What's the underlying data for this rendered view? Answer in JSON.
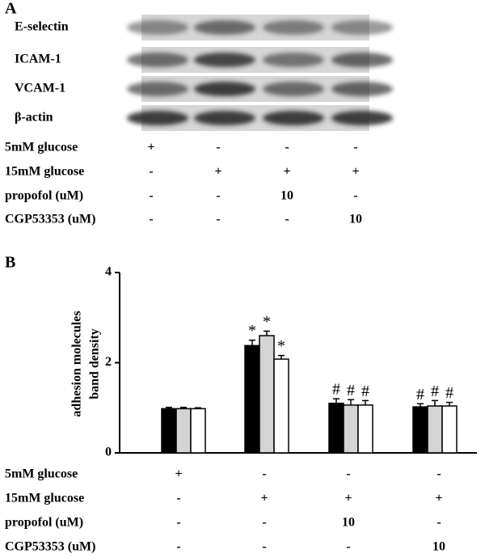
{
  "panel_a": {
    "label": "A",
    "bands": [
      "E-selectin",
      "ICAM-1",
      "VCAM-1",
      "β-actin"
    ],
    "conditions": [
      {
        "label": "5mM glucose",
        "values": [
          "+",
          "-",
          "-",
          "-"
        ]
      },
      {
        "label": "15mM glucose",
        "values": [
          "-",
          "+",
          "+",
          "+"
        ]
      },
      {
        "label": "propofol (uM)",
        "values": [
          "-",
          "-",
          "10",
          "-"
        ]
      },
      {
        "label": "CGP53353 (uM)",
        "values": [
          "-",
          "-",
          "-",
          "10"
        ]
      }
    ]
  },
  "chart_data": {
    "type": "bar",
    "panel_label": "B",
    "ylabel": [
      "adhesion molecules",
      "band density"
    ],
    "categories": [
      null,
      null,
      null,
      null
    ],
    "series": [
      {
        "color": "#000000",
        "values": [
          0.98,
          2.38,
          1.1,
          1.02
        ],
        "errors": [
          0.03,
          0.12,
          0.1,
          0.07
        ],
        "markers": [
          null,
          "*",
          "#",
          "#"
        ]
      },
      {
        "color": "#d4d4d4",
        "values": [
          0.98,
          2.6,
          1.06,
          1.04
        ],
        "errors": [
          0.03,
          0.1,
          0.12,
          0.12
        ],
        "markers": [
          null,
          "*",
          "#",
          "#"
        ]
      },
      {
        "color": "#ffffff",
        "values": [
          0.98,
          2.08,
          1.06,
          1.04
        ],
        "errors": [
          0.02,
          0.08,
          0.1,
          0.08
        ],
        "markers": [
          null,
          "*",
          "#",
          "#"
        ]
      }
    ],
    "ylim": [
      0,
      4
    ],
    "yticks": [
      0,
      2,
      4
    ],
    "conditions": [
      {
        "label": "5mM glucose",
        "values": [
          "+",
          "-",
          "-",
          "-"
        ]
      },
      {
        "label": "15mM glucose",
        "values": [
          "-",
          "+",
          "+",
          "+"
        ]
      },
      {
        "label": "propofol (uM)",
        "values": [
          "-",
          "-",
          "10",
          "-"
        ]
      },
      {
        "label": "CGP53353 (uM)",
        "values": [
          "-",
          "-",
          "-",
          "10"
        ]
      }
    ]
  }
}
